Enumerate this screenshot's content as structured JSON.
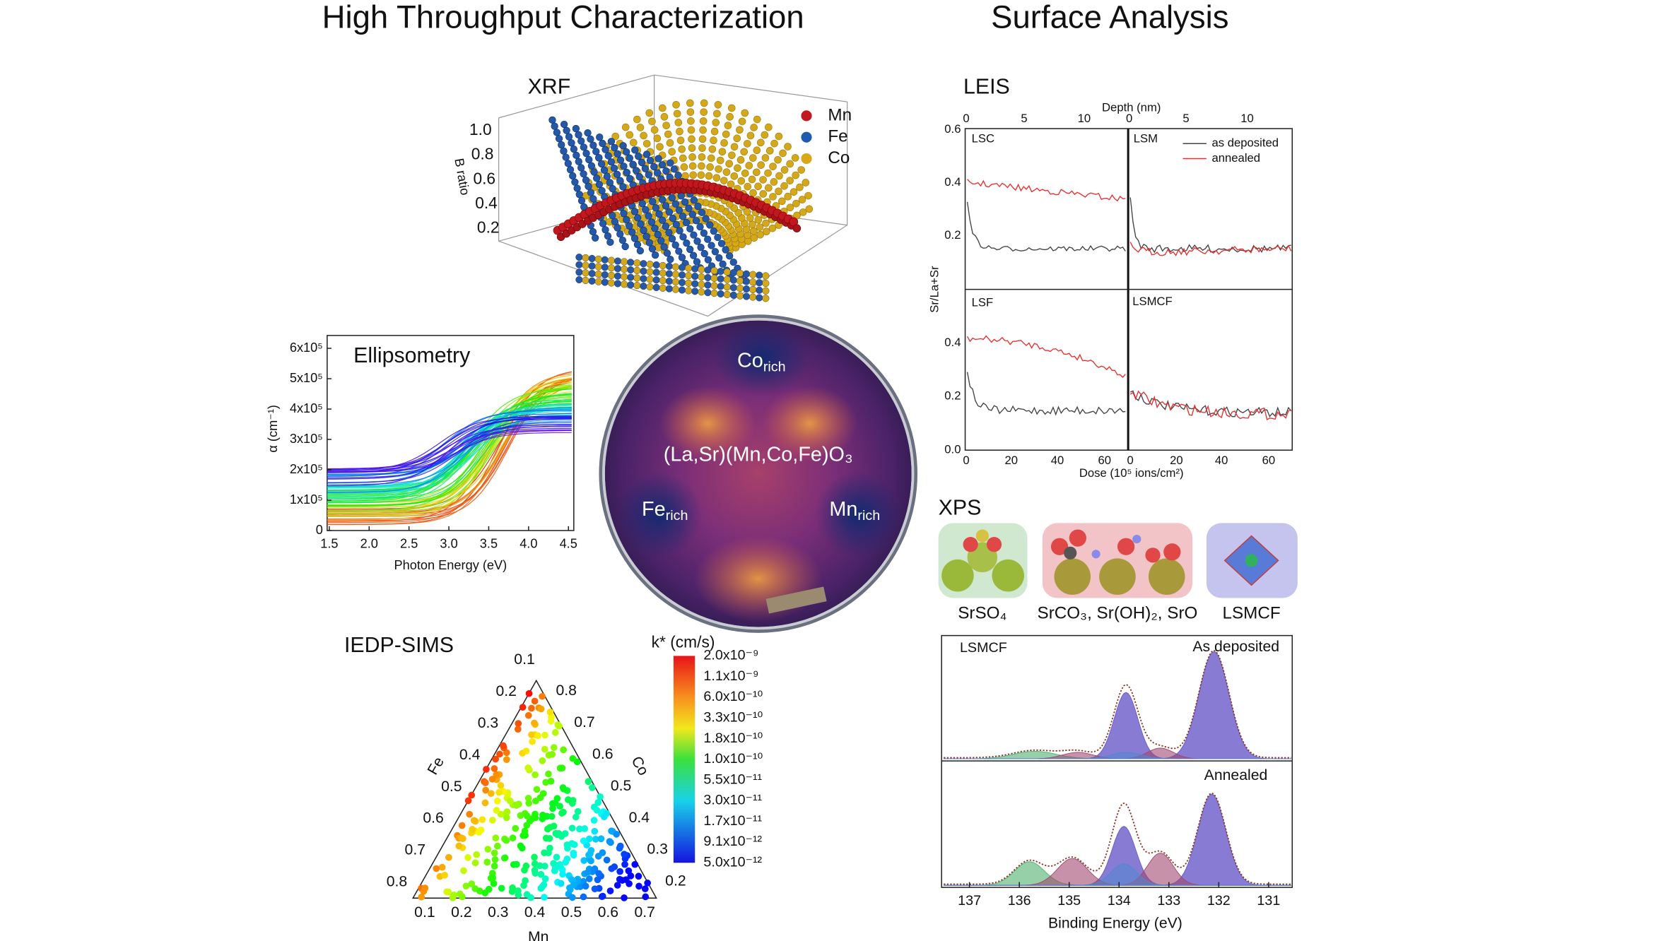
{
  "headings": {
    "left": "High Throughput Characterization",
    "right": "Surface Analysis"
  },
  "xrf": {
    "title": "XRF",
    "axis_label": "B ratio",
    "ticks": [
      "1.0",
      "0.8",
      "0.6",
      "0.4",
      "0.2"
    ],
    "legend": [
      "Mn",
      "Fe",
      "Co"
    ]
  },
  "ellipsometry": {
    "title": "Ellipsometry",
    "x_label": "Photon Energy (eV)",
    "y_label": "α (cm⁻¹)",
    "x_ticks": [
      "1.5",
      "2.0",
      "2.5",
      "3.0",
      "3.5",
      "4.0",
      "4.5"
    ],
    "y_ticks": [
      "0",
      "1x10⁵",
      "2x10⁵",
      "3x10⁵",
      "4x10⁵",
      "5x10⁵",
      "6x10⁵"
    ]
  },
  "wafer": {
    "composition": "(La,Sr)(Mn,Co,Fe)O₃",
    "regions": [
      {
        "element": "Co",
        "subscript": "rich"
      },
      {
        "element": "Fe",
        "subscript": "rich"
      },
      {
        "element": "Mn",
        "subscript": "rich"
      }
    ]
  },
  "iedp_sims": {
    "title": "IEDP-SIMS",
    "colorbar_title": "k* (cm/s)",
    "colorbar_ticks": [
      "2.0x10⁻⁹",
      "1.1x10⁻⁹",
      "6.0x10⁻¹⁰",
      "3.3x10⁻¹⁰",
      "1.8x10⁻¹⁰",
      "1.0x10⁻¹⁰",
      "5.5x10⁻¹¹",
      "3.0x10⁻¹¹",
      "1.7x10⁻¹¹",
      "9.1x10⁻¹²",
      "5.0x10⁻¹²"
    ],
    "fe_label": "Fe",
    "co_label": "Co",
    "mn_label": "Mn",
    "fe_ticks": [
      "0.1",
      "0.2",
      "0.3",
      "0.4",
      "0.5",
      "0.6",
      "0.7",
      "0.8"
    ],
    "co_ticks": [
      "0.8",
      "0.7",
      "0.6",
      "0.5",
      "0.4",
      "0.3",
      "0.2"
    ],
    "mn_ticks": [
      "0.1",
      "0.2",
      "0.3",
      "0.4",
      "0.5",
      "0.6",
      "0.7"
    ]
  },
  "leis": {
    "title": "LEIS",
    "top_label": "Depth (nm)",
    "top_ticks": [
      "0",
      "5",
      "10",
      "0",
      "5",
      "10"
    ],
    "x_label": "Dose (10⁵ ions/cm²)",
    "x_ticks": [
      "0",
      "20",
      "40",
      "60",
      "0",
      "20",
      "40",
      "60"
    ],
    "y_label": "Sr/La+Sr",
    "y_ticks_top": [
      "0.6",
      "0.4",
      "0.2"
    ],
    "y_ticks_bottom": [
      "0.4",
      "0.2",
      "0.0"
    ],
    "panels": [
      "LSC",
      "LSM",
      "LSF",
      "LSMCF"
    ],
    "legend": [
      "as deposited",
      "annealed"
    ]
  },
  "xps": {
    "title": "XPS",
    "species": [
      "SrSO₄",
      "SrCO₃, Sr(OH)₂, SrO",
      "LSMCF"
    ],
    "sample": "LSMCF",
    "states": [
      "As deposited",
      "Annealed"
    ],
    "x_label": "Binding Energy (eV)",
    "x_ticks": [
      "137",
      "136",
      "135",
      "134",
      "133",
      "132",
      "131"
    ]
  }
}
